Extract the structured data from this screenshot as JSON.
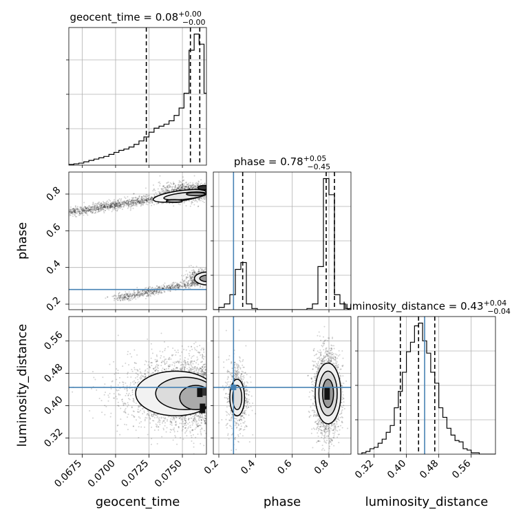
{
  "chart_data": {
    "type": "corner",
    "parameters": [
      "geocent_time",
      "phase",
      "luminosity_distance"
    ],
    "titles": [
      {
        "param": "geocent_time",
        "prefix": "geocent_time = ",
        "median": "0.08",
        "plus": "+0.00",
        "minus": "−0.00"
      },
      {
        "param": "phase",
        "prefix": "phase = ",
        "median": "0.78",
        "plus": "+0.05",
        "minus": "−0.45"
      },
      {
        "param": "luminosity_distance",
        "prefix": "luminosity_distance = ",
        "median": "0.43",
        "plus": "+0.04",
        "minus": "−0.04"
      }
    ],
    "axes": {
      "geocent_time": {
        "range": [
          0.0665,
          0.0768
        ],
        "ticks": [
          0.0675,
          0.07,
          0.0725,
          0.075
        ],
        "tick_labels": [
          "0.0675",
          "0.0700",
          "0.0725",
          "0.0750"
        ]
      },
      "phase": {
        "range": [
          0.17,
          0.92
        ],
        "ticks": [
          0.2,
          0.4,
          0.6,
          0.8
        ],
        "tick_labels": [
          "0.2",
          "0.4",
          "0.6",
          "0.8"
        ]
      },
      "luminosity_distance": {
        "range": [
          0.28,
          0.62
        ],
        "ticks": [
          0.32,
          0.4,
          0.48,
          0.56
        ],
        "tick_labels": [
          "0.32",
          "0.40",
          "0.48",
          "0.56"
        ]
      }
    },
    "quantiles": {
      "geocent_time": [
        0.0723,
        0.0756,
        0.0763
      ],
      "phase": [
        0.33,
        0.785,
        0.83
      ],
      "luminosity_distance": [
        0.385,
        0.43,
        0.47
      ]
    },
    "truths": {
      "phase": 0.28,
      "luminosity_distance": 0.445
    },
    "histograms": {
      "geocent_time": {
        "edges": [
          0.0665,
          0.06688,
          0.06725,
          0.06762,
          0.068,
          0.06838,
          0.06875,
          0.06912,
          0.0695,
          0.06988,
          0.07025,
          0.07062,
          0.071,
          0.07138,
          0.07175,
          0.07212,
          0.0725,
          0.07288,
          0.07325,
          0.07362,
          0.074,
          0.07438,
          0.07475,
          0.07512,
          0.0755,
          0.07588,
          0.07625,
          0.07662,
          0.077
        ],
        "counts": [
          1,
          2,
          3,
          5,
          7,
          9,
          11,
          13,
          16,
          19,
          22,
          24,
          27,
          31,
          36,
          42,
          49,
          55,
          58,
          61,
          66,
          74,
          85,
          107,
          171,
          195,
          180,
          107
        ]
      },
      "phase": {
        "edges": [
          0.17,
          0.2,
          0.23,
          0.26,
          0.29,
          0.32,
          0.35,
          0.38,
          0.41,
          0.44,
          0.47,
          0.5,
          0.53,
          0.56,
          0.59,
          0.62,
          0.65,
          0.68,
          0.71,
          0.74,
          0.77,
          0.8,
          0.83,
          0.86,
          0.89,
          0.92
        ],
        "counts": [
          0,
          4,
          10,
          26,
          70,
          82,
          10,
          2,
          0,
          0,
          0,
          0,
          0,
          0,
          0,
          0,
          0,
          2,
          10,
          75,
          228,
          200,
          26,
          10,
          2
        ]
      },
      "luminosity_distance": {
        "edges": [
          0.28,
          0.29,
          0.3,
          0.31,
          0.32,
          0.33,
          0.34,
          0.35,
          0.36,
          0.37,
          0.38,
          0.39,
          0.4,
          0.41,
          0.42,
          0.43,
          0.44,
          0.45,
          0.46,
          0.47,
          0.48,
          0.49,
          0.5,
          0.51,
          0.52,
          0.53,
          0.54,
          0.55,
          0.56,
          0.57,
          0.58,
          0.59,
          0.6,
          0.61,
          0.62
        ],
        "counts": [
          0,
          1,
          2,
          4,
          5,
          8,
          11,
          16,
          21,
          34,
          46,
          60,
          75,
          82,
          94,
          96,
          83,
          74,
          60,
          52,
          34,
          27,
          19,
          14,
          10,
          9,
          4,
          3,
          1,
          1,
          0,
          0,
          0,
          0
        ]
      }
    },
    "density_2d": {
      "phase_vs_geocent_time": {
        "modes": [
          [
            0.0745,
            0.76
          ],
          [
            0.0762,
            0.8
          ],
          [
            0.0766,
            0.835
          ],
          [
            0.0767,
            0.345
          ]
        ]
      },
      "luminosity_distance_vs_geocent_time": {
        "modes": [
          [
            0.0762,
            0.43
          ],
          [
            0.0764,
            0.4
          ]
        ]
      },
      "luminosity_distance_vs_phase": {
        "modes": [
          [
            0.3,
            0.425
          ],
          [
            0.79,
            0.43
          ]
        ]
      }
    },
    "grid": true
  }
}
